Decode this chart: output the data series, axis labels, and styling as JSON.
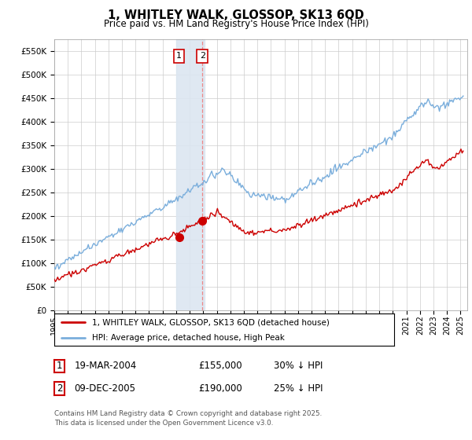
{
  "title": "1, WHITLEY WALK, GLOSSOP, SK13 6QD",
  "subtitle": "Price paid vs. HM Land Registry's House Price Index (HPI)",
  "ylabel_ticks": [
    "£0",
    "£50K",
    "£100K",
    "£150K",
    "£200K",
    "£250K",
    "£300K",
    "£350K",
    "£400K",
    "£450K",
    "£500K",
    "£550K"
  ],
  "ylim": [
    0,
    575000
  ],
  "xlim_start": 1995.0,
  "xlim_end": 2025.5,
  "sale1_x": 2004.21,
  "sale1_y": 155000,
  "sale1_label": "1",
  "sale2_x": 2005.94,
  "sale2_y": 190000,
  "sale2_label": "2",
  "shade_x0": 2004.0,
  "shade_x1": 2006.1,
  "legend_line1": "1, WHITLEY WALK, GLOSSOP, SK13 6QD (detached house)",
  "legend_line2": "HPI: Average price, detached house, High Peak",
  "table_rows": [
    [
      "1",
      "19-MAR-2004",
      "£155,000",
      "30% ↓ HPI"
    ],
    [
      "2",
      "09-DEC-2005",
      "£190,000",
      "25% ↓ HPI"
    ]
  ],
  "footer": "Contains HM Land Registry data © Crown copyright and database right 2025.\nThis data is licensed under the Open Government Licence v3.0.",
  "line_color_red": "#cc0000",
  "line_color_blue": "#7aaedc",
  "shade_color": "#dce6f1",
  "background_color": "#ffffff",
  "grid_color": "#cccccc"
}
